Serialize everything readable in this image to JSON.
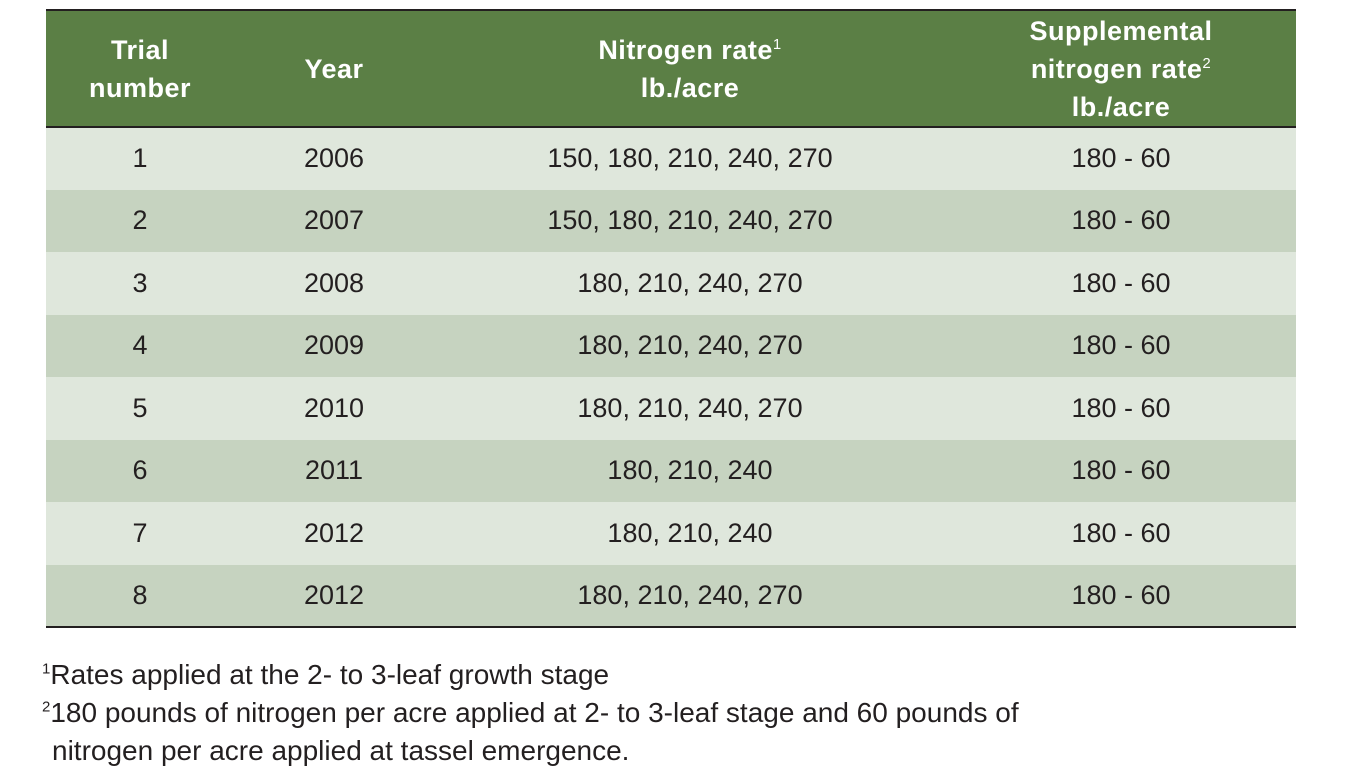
{
  "table": {
    "headers": {
      "trial": [
        "Trial",
        "number"
      ],
      "year": "Year",
      "nitrogen": [
        "Nitrogen rate",
        "lb./acre"
      ],
      "nitrogen_sup": "1",
      "supplemental": [
        "Supplemental",
        "nitrogen rate",
        "lb./acre"
      ],
      "supplemental_sup": "2"
    },
    "rows": [
      {
        "trial": "1",
        "year": "2006",
        "nitrogen": "150, 180, 210, 240, 270",
        "supplemental": "180 - 60"
      },
      {
        "trial": "2",
        "year": "2007",
        "nitrogen": "150, 180, 210, 240, 270",
        "supplemental": "180 - 60"
      },
      {
        "trial": "3",
        "year": "2008",
        "nitrogen": "180, 210, 240, 270",
        "supplemental": "180 - 60"
      },
      {
        "trial": "4",
        "year": "2009",
        "nitrogen": "180, 210, 240, 270",
        "supplemental": "180 - 60"
      },
      {
        "trial": "5",
        "year": "2010",
        "nitrogen": "180, 210, 240, 270",
        "supplemental": "180 - 60"
      },
      {
        "trial": "6",
        "year": "2011",
        "nitrogen": "180, 210, 240",
        "supplemental": "180 - 60"
      },
      {
        "trial": "7",
        "year": "2012",
        "nitrogen": "180, 210, 240",
        "supplemental": "180 - 60"
      },
      {
        "trial": "8",
        "year": "2012",
        "nitrogen": "180, 210, 240, 270",
        "supplemental": "180 - 60"
      }
    ]
  },
  "footnotes": {
    "fn1_marker": "1",
    "fn1_text": "Rates applied at the 2- to 3-leaf growth stage",
    "fn2_marker": "2",
    "fn2_line1": "180 pounds of nitrogen per acre applied at 2- to 3-leaf stage and 60 pounds of",
    "fn2_line2": "nitrogen per acre applied at tassel emergence."
  },
  "colors": {
    "header_bg": "#5b7f45",
    "row_light": "#dfe7dc",
    "row_dark": "#c6d3c0",
    "text": "#231f20"
  }
}
